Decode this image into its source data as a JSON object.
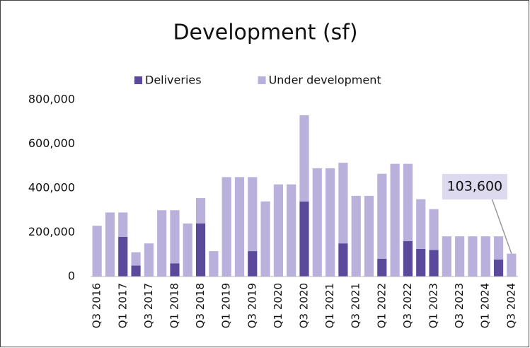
{
  "chart_data": {
    "type": "stacked_bar",
    "title": "Development (sf)",
    "categories": [
      "Q3 2016",
      null,
      "Q1 2017",
      null,
      "Q3 2017",
      null,
      "Q1 2018",
      null,
      "Q3 2018",
      null,
      "Q1 2019",
      null,
      "Q3 2019",
      null,
      "Q1 2020",
      null,
      "Q3 2020",
      null,
      "Q1 2021",
      null,
      "Q3 2021",
      null,
      "Q1 2022",
      null,
      "Q3 2022",
      null,
      "Q1 2023",
      null,
      "Q3 2023",
      null,
      "Q1 2024",
      null,
      "Q3 2024"
    ],
    "series": [
      {
        "name": "Deliveries",
        "color": "#5b4a9b",
        "values": [
          0,
          0,
          180000,
          50000,
          0,
          0,
          60000,
          0,
          240000,
          0,
          0,
          0,
          115000,
          0,
          0,
          0,
          340000,
          0,
          0,
          150000,
          0,
          0,
          80000,
          0,
          160000,
          125000,
          120000,
          0,
          0,
          0,
          0,
          77000,
          0
        ]
      },
      {
        "name": "Under development",
        "color": "#b9b1dc",
        "values": [
          230000,
          290000,
          110000,
          60000,
          150000,
          300000,
          240000,
          240000,
          115000,
          115000,
          450000,
          450000,
          335000,
          340000,
          417000,
          417000,
          390000,
          490000,
          490000,
          365000,
          365000,
          365000,
          385000,
          510000,
          350000,
          225000,
          185000,
          182000,
          182000,
          182000,
          182000,
          105000,
          103600
        ],
        "value_labels": [
          null,
          null,
          null,
          null,
          null,
          null,
          null,
          null,
          null,
          null,
          null,
          null,
          null,
          null,
          null,
          null,
          null,
          null,
          null,
          null,
          null,
          null,
          null,
          null,
          null,
          null,
          null,
          null,
          null,
          null,
          null,
          null,
          "103,600"
        ]
      }
    ],
    "ylim": [
      0,
      800000
    ],
    "yticks": [
      0,
      {
        "value": 200000,
        "label": "200,000"
      },
      {
        "value": 400000,
        "label": "400,000"
      },
      {
        "value": 600000,
        "label": "600,000"
      },
      {
        "value": 800000,
        "label": "800,000"
      }
    ],
    "legend": "top"
  }
}
